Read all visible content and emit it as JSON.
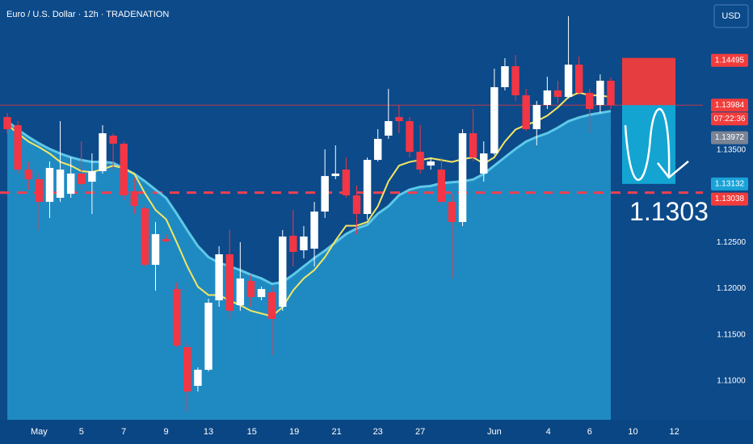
{
  "chart_data": {
    "type": "candlestick",
    "title": "Euro / U.S. Dollar · 12h · TRADENATION",
    "currency": "USD",
    "open": [
      1.13855,
      1.13767,
      1.13287,
      1.13183,
      1.12938,
      1.12982,
      1.13025,
      1.13244,
      1.13156,
      1.1327,
      1.13654,
      1.13567,
      1.13052,
      1.12868,
      1.12257,
      1.12536,
      1.11995,
      1.11367,
      1.10948,
      1.11122,
      1.11873,
      1.12371,
      1.11821,
      1.12083,
      1.11908,
      1.1196,
      1.11803,
      1.12571,
      1.12414,
      1.12432,
      1.12833,
      1.13217,
      1.13287,
      1.13008,
      1.12807,
      1.13392,
      1.13654,
      1.13855,
      1.13811,
      1.13479,
      1.13331,
      1.13287,
      1.12938,
      1.1272,
      1.1368,
      1.13244,
      1.13462,
      1.14178,
      1.14405,
      1.1409,
      1.13724,
      1.13986,
      1.14143,
      1.14073,
      1.14422,
      1.14117,
      1.13986,
      1.14248
    ],
    "high": [
      1.13898,
      1.13811,
      1.13375,
      1.13244,
      1.13375,
      1.13811,
      1.13418,
      1.13593,
      1.13462,
      1.13767,
      1.1368,
      1.13593,
      1.132,
      1.12894,
      1.1272,
      1.12589,
      1.12065,
      1.1141,
      1.11148,
      1.1189,
      1.12458,
      1.12633,
      1.12502,
      1.12152,
      1.12021,
      1.12021,
      1.12633,
      1.12851,
      1.12676,
      1.12938,
      1.13505,
      1.13549,
      1.13418,
      1.13113,
      1.13418,
      1.13724,
      1.1416,
      1.13986,
      1.13855,
      1.13767,
      1.13418,
      1.13418,
      1.13025,
      1.13724,
      1.13942,
      1.13593,
      1.14379,
      1.14492,
      1.14527,
      1.1416,
      1.14029,
      1.14291,
      1.14248,
      1.14946,
      1.14509,
      1.1416,
      1.14317,
      1.14282
    ],
    "low": [
      1.1368,
      1.13244,
      1.13069,
      1.12633,
      1.12763,
      1.12938,
      1.12982,
      1.13069,
      1.12807,
      1.13244,
      1.13287,
      1.12956,
      1.12807,
      1.1224,
      1.11978,
      1.12502,
      1.11367,
      1.10668,
      1.10887,
      1.11105,
      1.11803,
      1.11672,
      1.1176,
      1.11803,
      1.11873,
      1.11279,
      1.1176,
      1.1224,
      1.12327,
      1.1224,
      1.12763,
      1.13183,
      1.12982,
      1.12589,
      1.12746,
      1.13375,
      1.13619,
      1.1368,
      1.13418,
      1.13244,
      1.13287,
      1.12894,
      1.12109,
      1.12676,
      1.13375,
      1.13156,
      1.13444,
      1.14143,
      1.14029,
      1.13706,
      1.13549,
      1.13942,
      1.14003,
      1.14056,
      1.1409,
      1.1368,
      1.13898,
      1.13942
    ],
    "close": [
      1.13724,
      1.13287,
      1.13183,
      1.12938,
      1.13305,
      1.13287,
      1.13244,
      1.1313,
      1.1327,
      1.1368,
      1.13567,
      1.13008,
      1.12894,
      1.12257,
      1.12589,
      1.1251,
      1.11384,
      1.10887,
      1.11122,
      1.11847,
      1.12371,
      1.1176,
      1.12109,
      1.11908,
      1.11995,
      1.11672,
      1.12563,
      1.12397,
      1.12563,
      1.12833,
      1.13217,
      1.13244,
      1.13008,
      1.12807,
      1.13392,
      1.13619,
      1.13811,
      1.13811,
      1.13479,
      1.13287,
      1.13375,
      1.12938,
      1.1272,
      1.1368,
      1.13418,
      1.13462,
      1.14178,
      1.14405,
      1.1409,
      1.13724,
      1.13986,
      1.14143,
      1.14073,
      1.14422,
      1.14117,
      1.13942,
      1.14248,
      1.13984
    ],
    "up_color": "#ffffff",
    "down_color": "#f23645",
    "ema_fast": {
      "color": "#f5e663",
      "values": [
        1.1377,
        1.1368,
        1.1359,
        1.1353,
        1.1346,
        1.1337,
        1.1333,
        1.1327,
        1.1326,
        1.1329,
        1.1333,
        1.133,
        1.1324,
        1.1303,
        1.1285,
        1.1275,
        1.125,
        1.1224,
        1.1202,
        1.1193,
        1.1193,
        1.1187,
        1.1182,
        1.1176,
        1.1173,
        1.117,
        1.118,
        1.1198,
        1.1211,
        1.122,
        1.1234,
        1.1252,
        1.1268,
        1.1268,
        1.1272,
        1.1289,
        1.1316,
        1.1333,
        1.1337,
        1.1339,
        1.1341,
        1.1339,
        1.1337,
        1.134,
        1.1342,
        1.1335,
        1.1342,
        1.1359,
        1.1372,
        1.1377,
        1.1381,
        1.1387,
        1.1396,
        1.1407,
        1.1412,
        1.1409,
        1.1409,
        1.1407
      ]
    },
    "ema_slow": {
      "color": "#5ec8e8",
      "fill": "#1f8ac2",
      "values": [
        1.1381,
        1.1372,
        1.1364,
        1.1357,
        1.1351,
        1.1346,
        1.1342,
        1.1339,
        1.1337,
        1.1337,
        1.1336,
        1.133,
        1.1324,
        1.1316,
        1.1307,
        1.1298,
        1.1281,
        1.1263,
        1.1246,
        1.1234,
        1.1228,
        1.1224,
        1.122,
        1.1215,
        1.1211,
        1.1205,
        1.1207,
        1.1215,
        1.1224,
        1.1233,
        1.1241,
        1.125,
        1.1259,
        1.1265,
        1.1269,
        1.1281,
        1.1289,
        1.1301,
        1.1307,
        1.131,
        1.1311,
        1.1314,
        1.1315,
        1.1316,
        1.1318,
        1.1324,
        1.1333,
        1.1342,
        1.1351,
        1.1359,
        1.1364,
        1.1368,
        1.1374,
        1.1381,
        1.1385,
        1.1388,
        1.139,
        1.1392
      ]
    },
    "xlim": [
      -0.69,
      65.7
    ],
    "ylim": [
      1.10581,
      1.15121
    ],
    "xticks": [
      {
        "value": 3,
        "label": "May"
      },
      {
        "value": 7,
        "label": "5"
      },
      {
        "value": 11,
        "label": "7"
      },
      {
        "value": 15,
        "label": "9"
      },
      {
        "value": 19,
        "label": "13"
      },
      {
        "value": 23.1,
        "label": "15"
      },
      {
        "value": 27.1,
        "label": "19"
      },
      {
        "value": 31.1,
        "label": "21"
      },
      {
        "value": 35,
        "label": "23"
      },
      {
        "value": 39,
        "label": "27"
      },
      {
        "value": 46,
        "label": "Jun"
      },
      {
        "value": 51.1,
        "label": "4"
      },
      {
        "value": 55,
        "label": "6"
      },
      {
        "value": 59.1,
        "label": "10"
      },
      {
        "value": 63,
        "label": "12"
      }
    ],
    "yticks": [
      {
        "value": 1.135,
        "label": "1.13500"
      },
      {
        "value": 1.125,
        "label": "1.12500"
      },
      {
        "value": 1.12,
        "label": "1.12000"
      },
      {
        "value": 1.115,
        "label": "1.11500"
      },
      {
        "value": 1.11,
        "label": "1.11000"
      }
    ],
    "stop": 1.14495,
    "last_price": 1.13984,
    "countdown": "07:22:36",
    "prev_close": 1.13972,
    "target": 1.13132,
    "level": 1.13038,
    "annotation": "1.1303"
  }
}
